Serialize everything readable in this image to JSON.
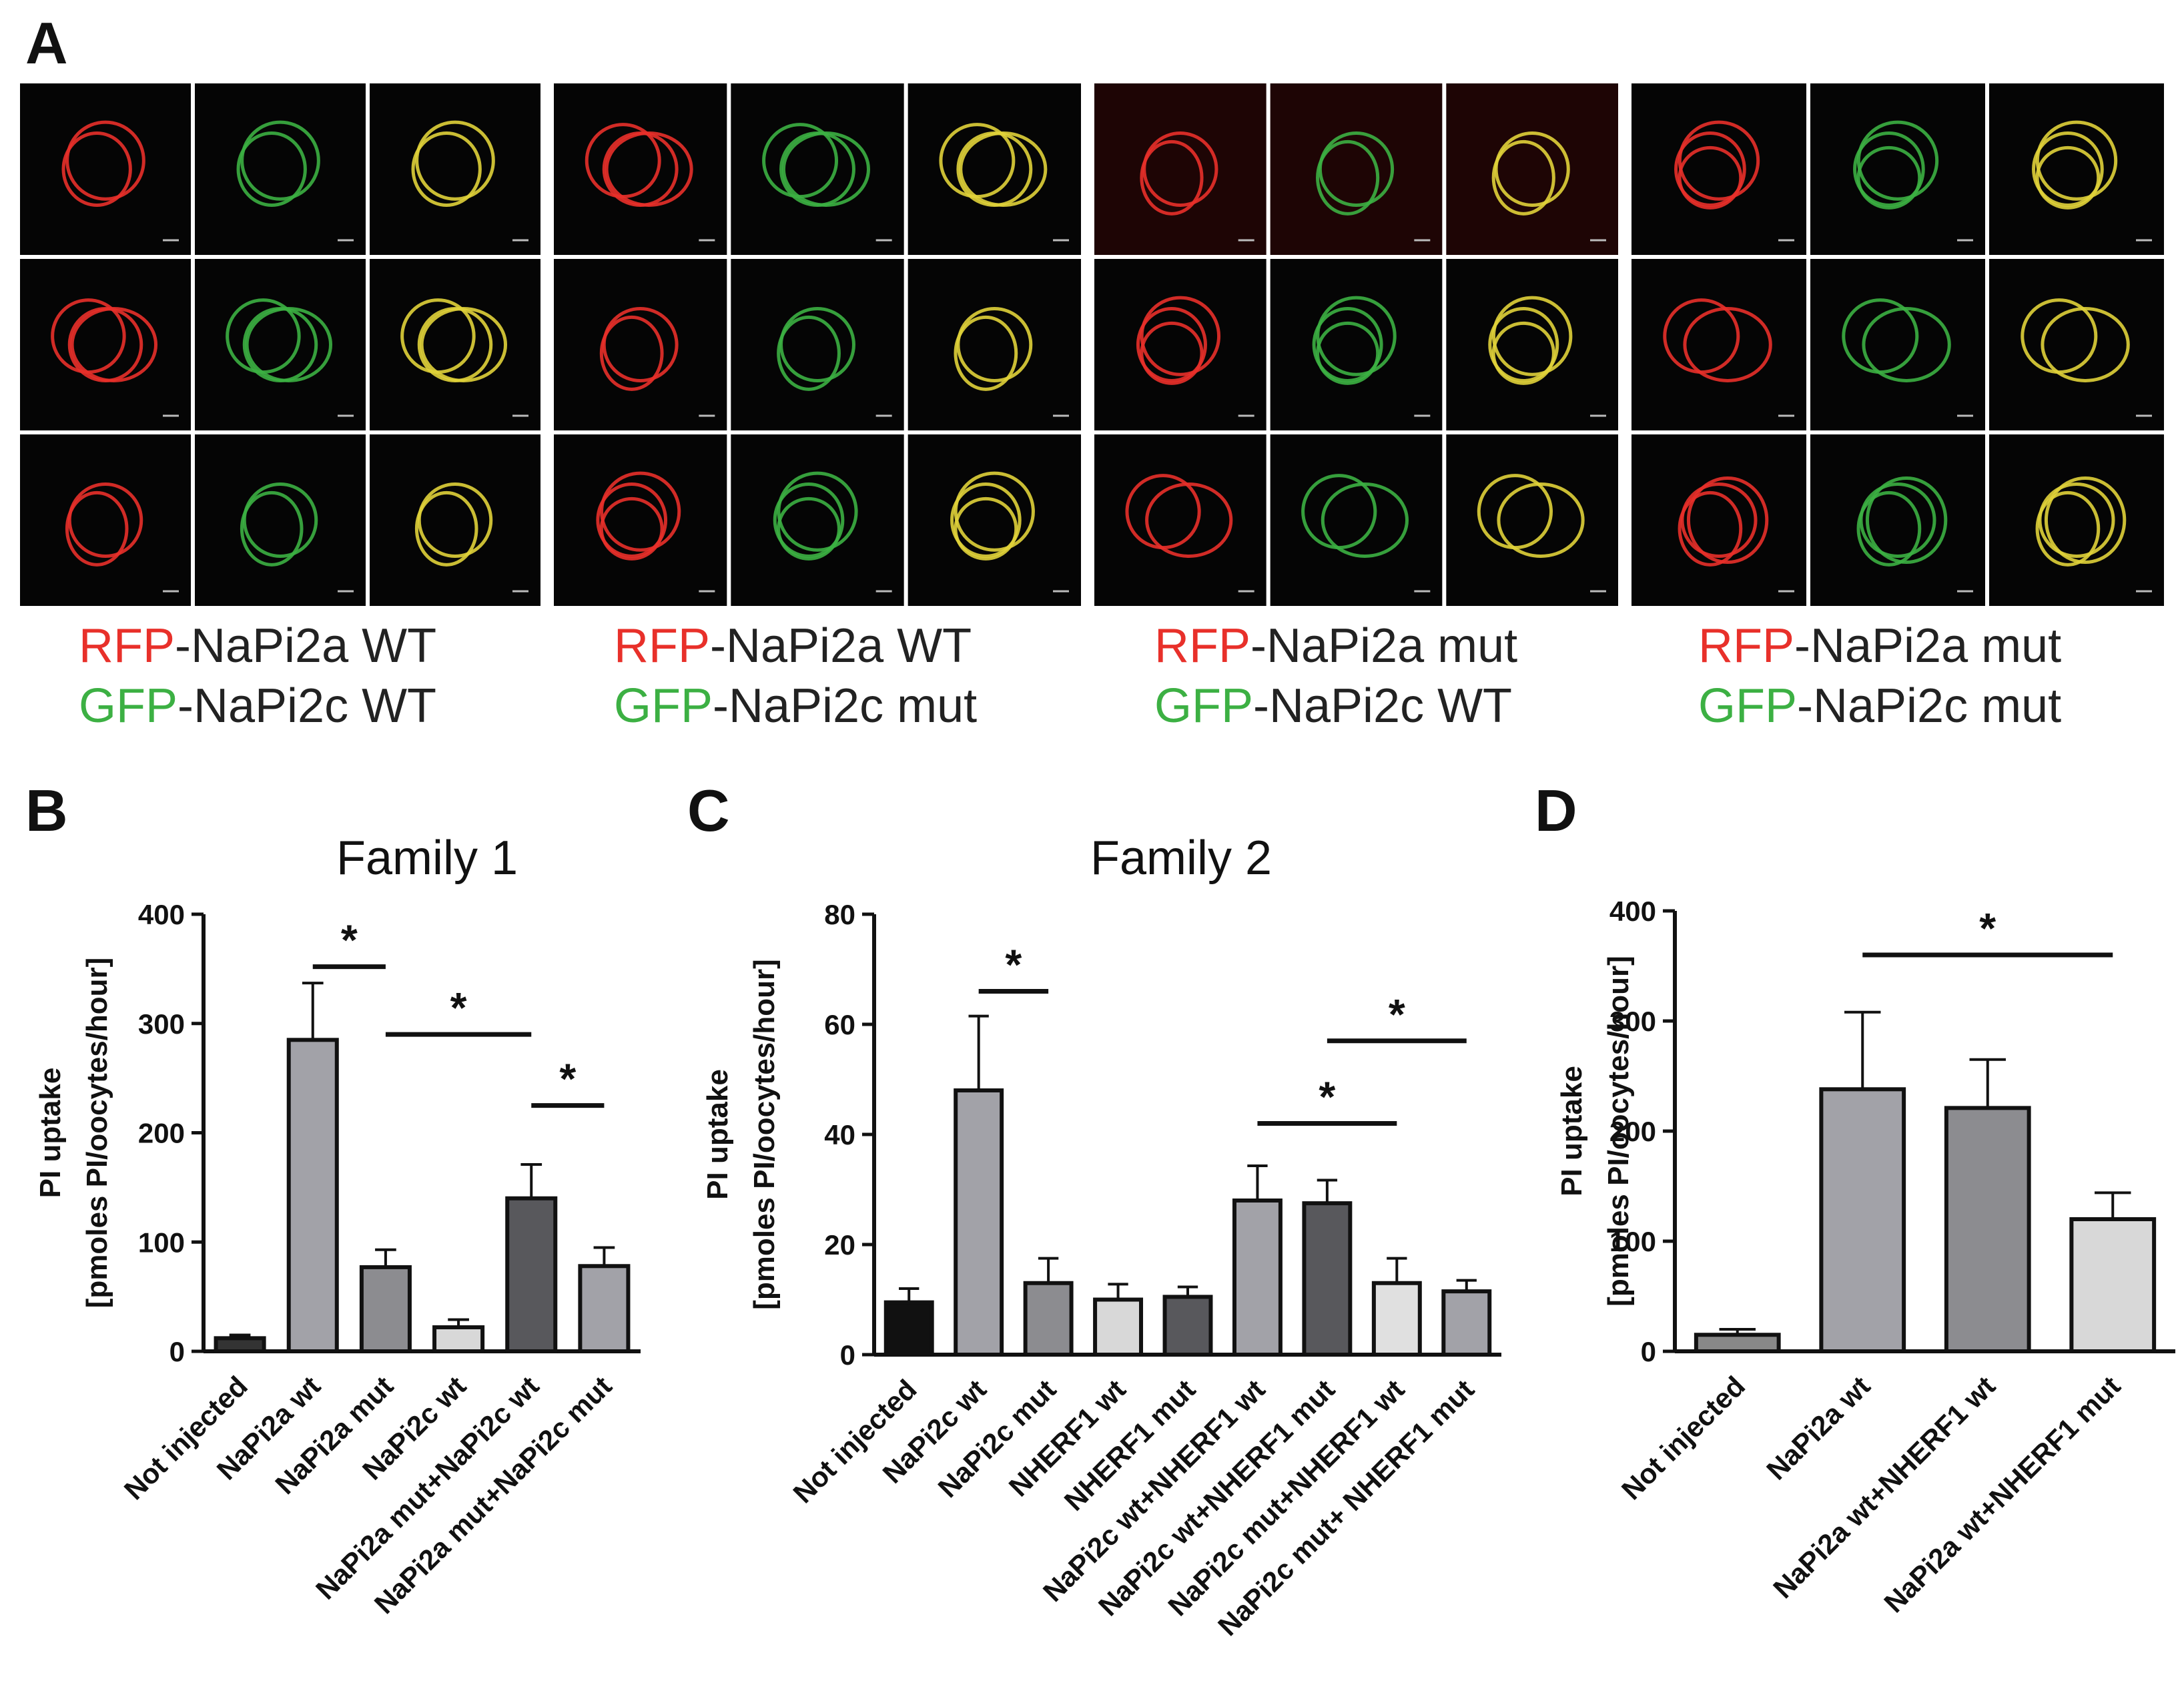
{
  "panel_a": {
    "letter": "A",
    "groups": [
      {
        "rfp_prefix": "RFP",
        "rfp_suffix": "-NaPi2a WT",
        "gfp_prefix": "GFP",
        "gfp_suffix": "-NaPi2c WT"
      },
      {
        "rfp_prefix": "RFP",
        "rfp_suffix": "-NaPi2a WT",
        "gfp_prefix": "GFP",
        "gfp_suffix": "-NaPi2c mut"
      },
      {
        "rfp_prefix": "RFP",
        "rfp_suffix": "-NaPi2a mut",
        "gfp_prefix": "GFP",
        "gfp_suffix": "-NaPi2c WT"
      },
      {
        "rfp_prefix": "RFP",
        "rfp_suffix": "-NaPi2a mut",
        "gfp_prefix": "GFP",
        "gfp_suffix": "-NaPi2c mut"
      }
    ]
  },
  "colors": {
    "rfp": "#e8302a",
    "gfp": "#3cb043",
    "merge": "#e0d23a",
    "micrograph_bg": "#050505",
    "micrograph_bg_red": "#1e0505"
  },
  "chart_data": [
    {
      "panel": "B",
      "type": "bar",
      "title": "Family 1",
      "ylabel_line1": "PI uptake",
      "ylabel_line2": "[pmoles PI/oocytes/hour]",
      "ylim": [
        0,
        400
      ],
      "yticks": [
        0,
        100,
        200,
        300,
        400
      ],
      "categories": [
        "Not injected",
        "NaPi2a wt",
        "NaPi2a mut",
        "NaPi2c wt",
        "NaPi2a mut+NaPi2c wt",
        "NaPi2a mut+NaPi2c mut"
      ],
      "values": [
        12,
        285,
        77,
        22,
        140,
        78
      ],
      "errors": [
        3,
        52,
        16,
        7,
        31,
        17
      ],
      "bar_colors": [
        "#333333",
        "#a2a2a8",
        "#8c8c90",
        "#d8d8d8",
        "#58585c",
        "#a2a2a8"
      ],
      "significance": [
        {
          "from": 1,
          "to": 2,
          "y": 352,
          "label": "*"
        },
        {
          "from": 2,
          "to": 4,
          "y": 290,
          "label": "*"
        },
        {
          "from": 4,
          "to": 5,
          "y": 225,
          "label": "*"
        }
      ]
    },
    {
      "panel": "C",
      "type": "bar",
      "title": "Family 2",
      "ylabel_line1": "PI uptake",
      "ylabel_line2": "[pmoles PI/oocytes/hour]",
      "ylim": [
        0,
        80
      ],
      "yticks": [
        0,
        20,
        40,
        60,
        80
      ],
      "categories": [
        "Not injected",
        "NaPi2c wt",
        "NaPi2c mut",
        "NHERF1 wt",
        "NHERF1 mut",
        "NaPi2c wt+NHERF1 wt",
        "NaPi2c wt+NHERF1 mut",
        "NaPi2c mut+NHERF1 wt",
        "NaPi2c mut+ NHERF1 mut"
      ],
      "values": [
        9.5,
        48,
        13,
        10,
        10.5,
        28,
        27.5,
        13,
        11.5
      ],
      "errors": [
        2.5,
        13.5,
        4.5,
        2.8,
        1.8,
        6.3,
        4.2,
        4.5,
        2
      ],
      "bar_colors": [
        "#111111",
        "#a2a2a8",
        "#8c8c90",
        "#d8d8d8",
        "#58585c",
        "#a2a2a8",
        "#58585c",
        "#e0e0e0",
        "#a2a2a8"
      ],
      "significance": [
        {
          "from": 1,
          "to": 2,
          "y": 66,
          "label": "*"
        },
        {
          "from": 5,
          "to": 7,
          "y": 42,
          "label": "*"
        },
        {
          "from": 6,
          "to": 8,
          "y": 57,
          "label": "*"
        }
      ]
    },
    {
      "panel": "D",
      "type": "bar",
      "title": "",
      "ylabel_line1": "PI uptake",
      "ylabel_line2": "[pmoles PI/oocytes/hour]",
      "ylim": [
        0,
        400
      ],
      "yticks": [
        0,
        100,
        200,
        300,
        400
      ],
      "categories": [
        "Not injected",
        "NaPi2a wt",
        "NaPi2a wt+NHERF1 wt",
        "NaPi2a wt+NHERF1 mut"
      ],
      "values": [
        15,
        238,
        221,
        120
      ],
      "errors": [
        5,
        70,
        44,
        24
      ],
      "bar_colors": [
        "#888888",
        "#a2a2a8",
        "#8c8c90",
        "#d8d8d8"
      ],
      "significance": [
        {
          "from": 1,
          "to": 3,
          "y": 360,
          "label": "*"
        }
      ]
    }
  ]
}
